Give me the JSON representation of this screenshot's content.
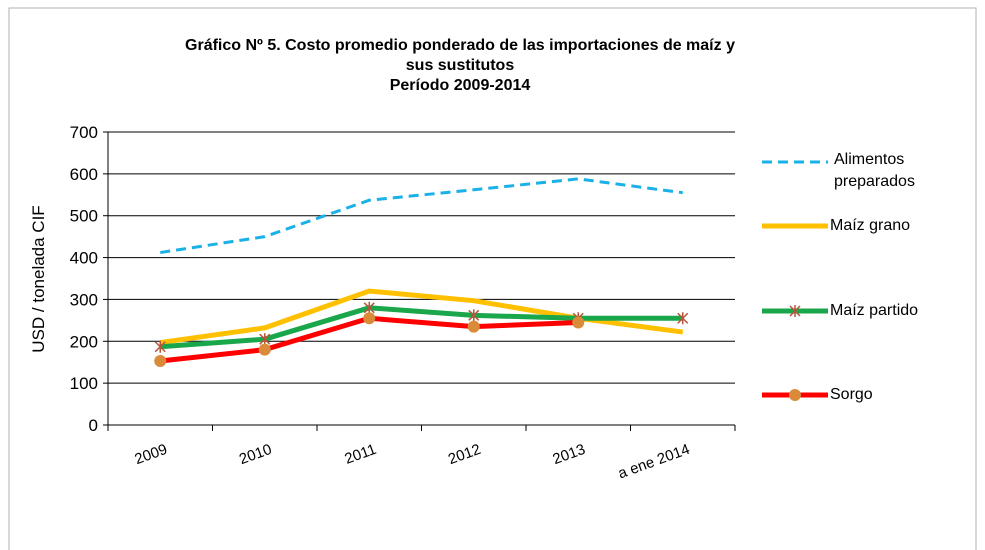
{
  "chart_data": {
    "type": "line",
    "title": [
      "Gráfico Nº 5. Costo promedio ponderado de las importaciones de maíz y",
      "sus sustitutos",
      "Período 2009-2014"
    ],
    "y_label": "USD / tonelada CIF",
    "categories": [
      "2009",
      "2010",
      "2011",
      "2012",
      "2013",
      "a ene 2014"
    ],
    "series": [
      {
        "name": "Alimentos preparados",
        "color": "#1ab0e8",
        "dashed": true,
        "marker": "none",
        "values": [
          412,
          450,
          537,
          562,
          588,
          555
        ]
      },
      {
        "name": "Maíz grano",
        "color": "#ffc000",
        "marker": "none",
        "values": [
          197,
          232,
          320,
          297,
          255,
          222
        ]
      },
      {
        "name": "Maíz partido",
        "color": "#1aa64a",
        "marker": "star",
        "marker_color": "#b5553a",
        "values": [
          187,
          205,
          280,
          262,
          255,
          255
        ]
      },
      {
        "name": "Sorgo",
        "color": "#ff0000",
        "marker": "circle",
        "marker_color": "#d98b3a",
        "values": [
          153,
          180,
          255,
          235,
          245,
          null
        ]
      }
    ],
    "ylim": [
      0,
      700
    ],
    "yticks": [
      0,
      100,
      200,
      300,
      400,
      500,
      600,
      700
    ],
    "grid": true,
    "legend": "right"
  }
}
